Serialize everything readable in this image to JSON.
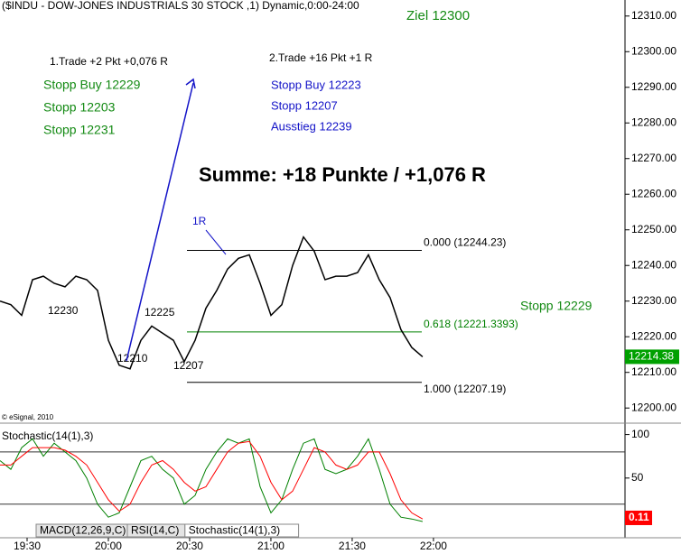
{
  "chart_data": [
    {
      "type": "line",
      "title": "($INDU - DOW-JONES INDUSTRIALS 30 STOCK ,1) Dynamic,0:00-24:00",
      "xlim": [
        1160,
        1390.7
      ],
      "ylim": [
        12196,
        12314.5
      ],
      "yticks": [
        {
          "value": 12200,
          "label": "12200.00"
        },
        {
          "value": 12210,
          "label": "12210.00"
        },
        {
          "value": 12220,
          "label": "12220.00"
        },
        {
          "value": 12230,
          "label": "12230.00"
        },
        {
          "value": 12240,
          "label": "12240.00"
        },
        {
          "value": 12250,
          "label": "12250.00"
        },
        {
          "value": 12260,
          "label": "12260.00"
        },
        {
          "value": 12270,
          "label": "12270.00"
        },
        {
          "value": 12280,
          "label": "12280.00"
        },
        {
          "value": 12290,
          "label": "12290.00"
        },
        {
          "value": 12300,
          "label": "12300.00"
        },
        {
          "value": 12310,
          "label": "12310.00"
        }
      ],
      "x": [
        1160,
        1164,
        1168,
        1172,
        1176,
        1180,
        1184,
        1188,
        1192,
        1196,
        1200,
        1204,
        1208,
        1212,
        1216,
        1220,
        1224,
        1228,
        1232,
        1236,
        1240,
        1244,
        1248,
        1252,
        1256,
        1260,
        1264,
        1268,
        1272,
        1276,
        1280,
        1284,
        1288,
        1292,
        1296,
        1300,
        1304,
        1308,
        1312,
        1316
      ],
      "series": [
        {
          "color": "#000000",
          "values": [
            12230,
            12229,
            12226,
            12236,
            12237,
            12235,
            12234,
            12237,
            12236,
            12233,
            12219,
            12212,
            12211,
            12219,
            12223,
            12221,
            12219,
            12213,
            12219,
            12228,
            12233,
            12239,
            12242,
            12243,
            12235,
            12226,
            12229,
            12240,
            12248,
            12244,
            12236,
            12237,
            12237,
            12238,
            12243,
            12236,
            12231,
            12222,
            12217,
            12214.38
          ]
        }
      ],
      "current_price": 12214.38,
      "current_color": "#00a000",
      "fib_levels": [
        {
          "label": "0.000 (12244.23)",
          "value": 12244.23,
          "color": "#000000"
        },
        {
          "label": "0.618 (12221.3393)",
          "value": 12221.3393,
          "color": "#008000"
        },
        {
          "label": "1.000 (12207.19)",
          "value": 12207.19,
          "color": "#000000"
        }
      ],
      "annotations": [
        "Ziel 12300",
        "1.Trade +2 Pkt +0,076 R",
        "2.Trade +16 Pkt +1 R",
        "Stopp Buy 12229",
        "Stopp 12203",
        "Stopp 12231",
        "Stopp Buy 12223",
        "Stopp 12207",
        "Ausstieg 12239",
        "Summe: +18 Punkte / +1,076 R",
        "1R",
        "12230",
        "12225",
        "12210",
        "12207",
        "Stopp 12229",
        "© eSignal, 2010"
      ]
    },
    {
      "type": "line",
      "title": "Stochastic(14(1),3)",
      "xlim": [
        1160,
        1390.7
      ],
      "ylim": [
        -2,
        112
      ],
      "xticks": [
        {
          "value": 1170,
          "label": "19:30"
        },
        {
          "value": 1200,
          "label": "20:00"
        },
        {
          "value": 1230,
          "label": "20:30"
        },
        {
          "value": 1260,
          "label": "21:00"
        },
        {
          "value": 1290,
          "label": "21:30"
        },
        {
          "value": 1320,
          "label": "22:00"
        }
      ],
      "yticks": [
        50,
        100
      ],
      "levels": [
        80,
        20
      ],
      "x": [
        1160,
        1164,
        1168,
        1172,
        1176,
        1180,
        1184,
        1188,
        1192,
        1196,
        1200,
        1204,
        1208,
        1212,
        1216,
        1220,
        1224,
        1228,
        1232,
        1236,
        1240,
        1244,
        1248,
        1252,
        1256,
        1260,
        1264,
        1268,
        1272,
        1276,
        1280,
        1284,
        1288,
        1292,
        1296,
        1300,
        1304,
        1308,
        1312,
        1316
      ],
      "series": [
        {
          "color": "#008000",
          "values": [
            70,
            60,
            85,
            95,
            75,
            90,
            80,
            70,
            50,
            20,
            5,
            10,
            40,
            70,
            75,
            60,
            50,
            20,
            30,
            60,
            80,
            95,
            90,
            95,
            40,
            10,
            25,
            60,
            90,
            95,
            60,
            55,
            60,
            75,
            95,
            60,
            20,
            5,
            3,
            0.11
          ]
        },
        {
          "color": "#ff0000",
          "values": [
            65,
            65,
            75,
            85,
            85,
            85,
            82,
            75,
            65,
            45,
            25,
            12,
            20,
            45,
            65,
            70,
            60,
            45,
            35,
            40,
            60,
            80,
            90,
            92,
            75,
            45,
            25,
            35,
            60,
            85,
            80,
            65,
            60,
            65,
            80,
            80,
            55,
            25,
            10,
            3
          ]
        }
      ],
      "current_value": 0.11,
      "current_color": "#ff0000",
      "tabs": [
        "MACD(12,26,9,C)",
        "RSI(14,C)",
        "Stochastic(14(1),3)"
      ]
    }
  ]
}
